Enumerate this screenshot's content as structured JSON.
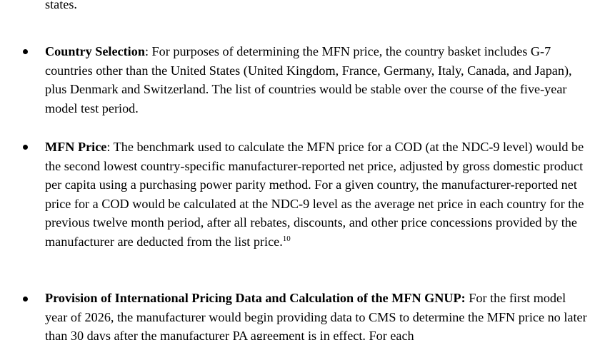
{
  "doc": {
    "partial_line_top": "states.",
    "items": [
      {
        "heading": "Country Selection",
        "body": ": For purposes of determining the MFN price, the country basket includes G-7 countries other than the United States (United Kingdom, France, Germany, Italy, Canada, and Japan), plus Denmark and Switzerland. The list of countries would be stable over the course of the five-year model test period."
      },
      {
        "heading": "MFN Price",
        "body": ": The benchmark used to calculate the MFN price for a COD (at the NDC-9 level) would be the second lowest country-specific manufacturer-reported net price, adjusted by gross domestic product per capita using a purchasing power parity method.  For a given country, the manufacturer-reported net price for a COD would be calculated at the NDC-9 level as the average net price in each country for the previous twelve month period, after all rebates, discounts, and other price concessions provided by the manufacturer are deducted from the list price.",
        "footnote": "10"
      },
      {
        "heading": "Provision of International Pricing Data and Calculation of the MFN GNUP:",
        "body": " For the first model year of 2026, the manufacturer would begin providing data to CMS to determine the MFN price no later than 30 days after the manufacturer PA agreement is in effect. For each"
      }
    ]
  }
}
